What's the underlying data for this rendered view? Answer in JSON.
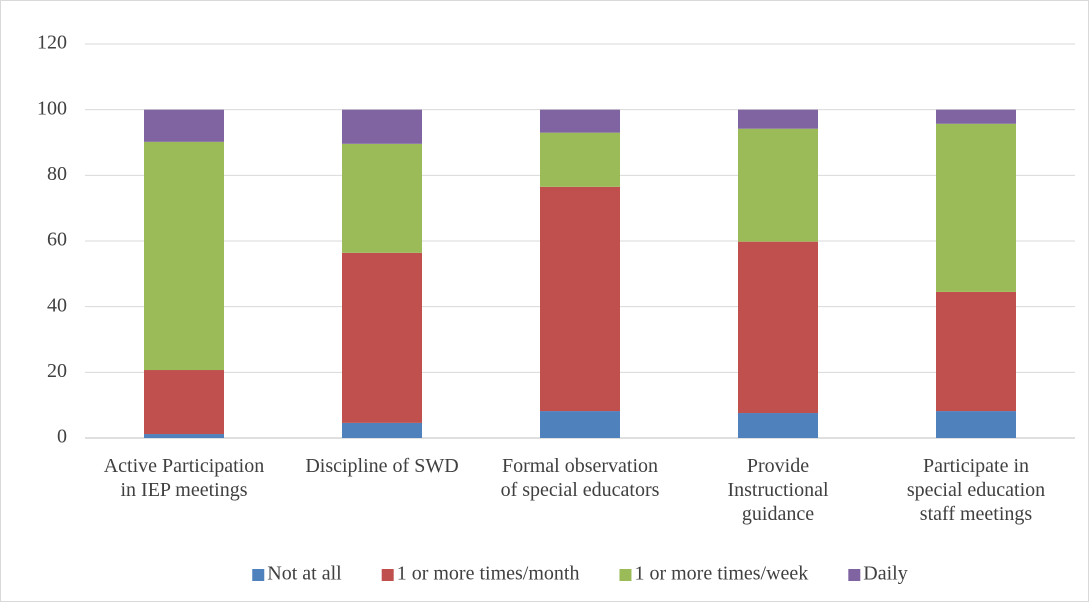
{
  "chart_data": {
    "type": "stacked_bar",
    "categories": [
      "Active Participation\nin IEP meetings",
      "Discipline of SWD",
      "Formal observation\nof special educators",
      "Provide\nInstructional\nguidance",
      "Participate in\nspecial education\nstaff meetings"
    ],
    "series": [
      {
        "name": "Not at all",
        "color": "#4f81bd",
        "values": [
          1.2,
          4.6,
          8.2,
          7.6,
          8.2
        ]
      },
      {
        "name": "1 or more times/month",
        "color": "#c0504d",
        "values": [
          19.5,
          51.8,
          68.3,
          52.2,
          36.3
        ]
      },
      {
        "name": "1 or more times/week",
        "color": "#9bbb59",
        "values": [
          69.5,
          33.2,
          16.5,
          34.4,
          51.2
        ]
      },
      {
        "name": "Daily",
        "color": "#8064a2",
        "values": [
          9.8,
          10.4,
          7.0,
          5.8,
          4.3
        ]
      }
    ],
    "ylim": [
      0,
      120
    ],
    "yticks": [
      0,
      20,
      40,
      60,
      80,
      100,
      120
    ],
    "grid": true,
    "legend": "bottom"
  }
}
